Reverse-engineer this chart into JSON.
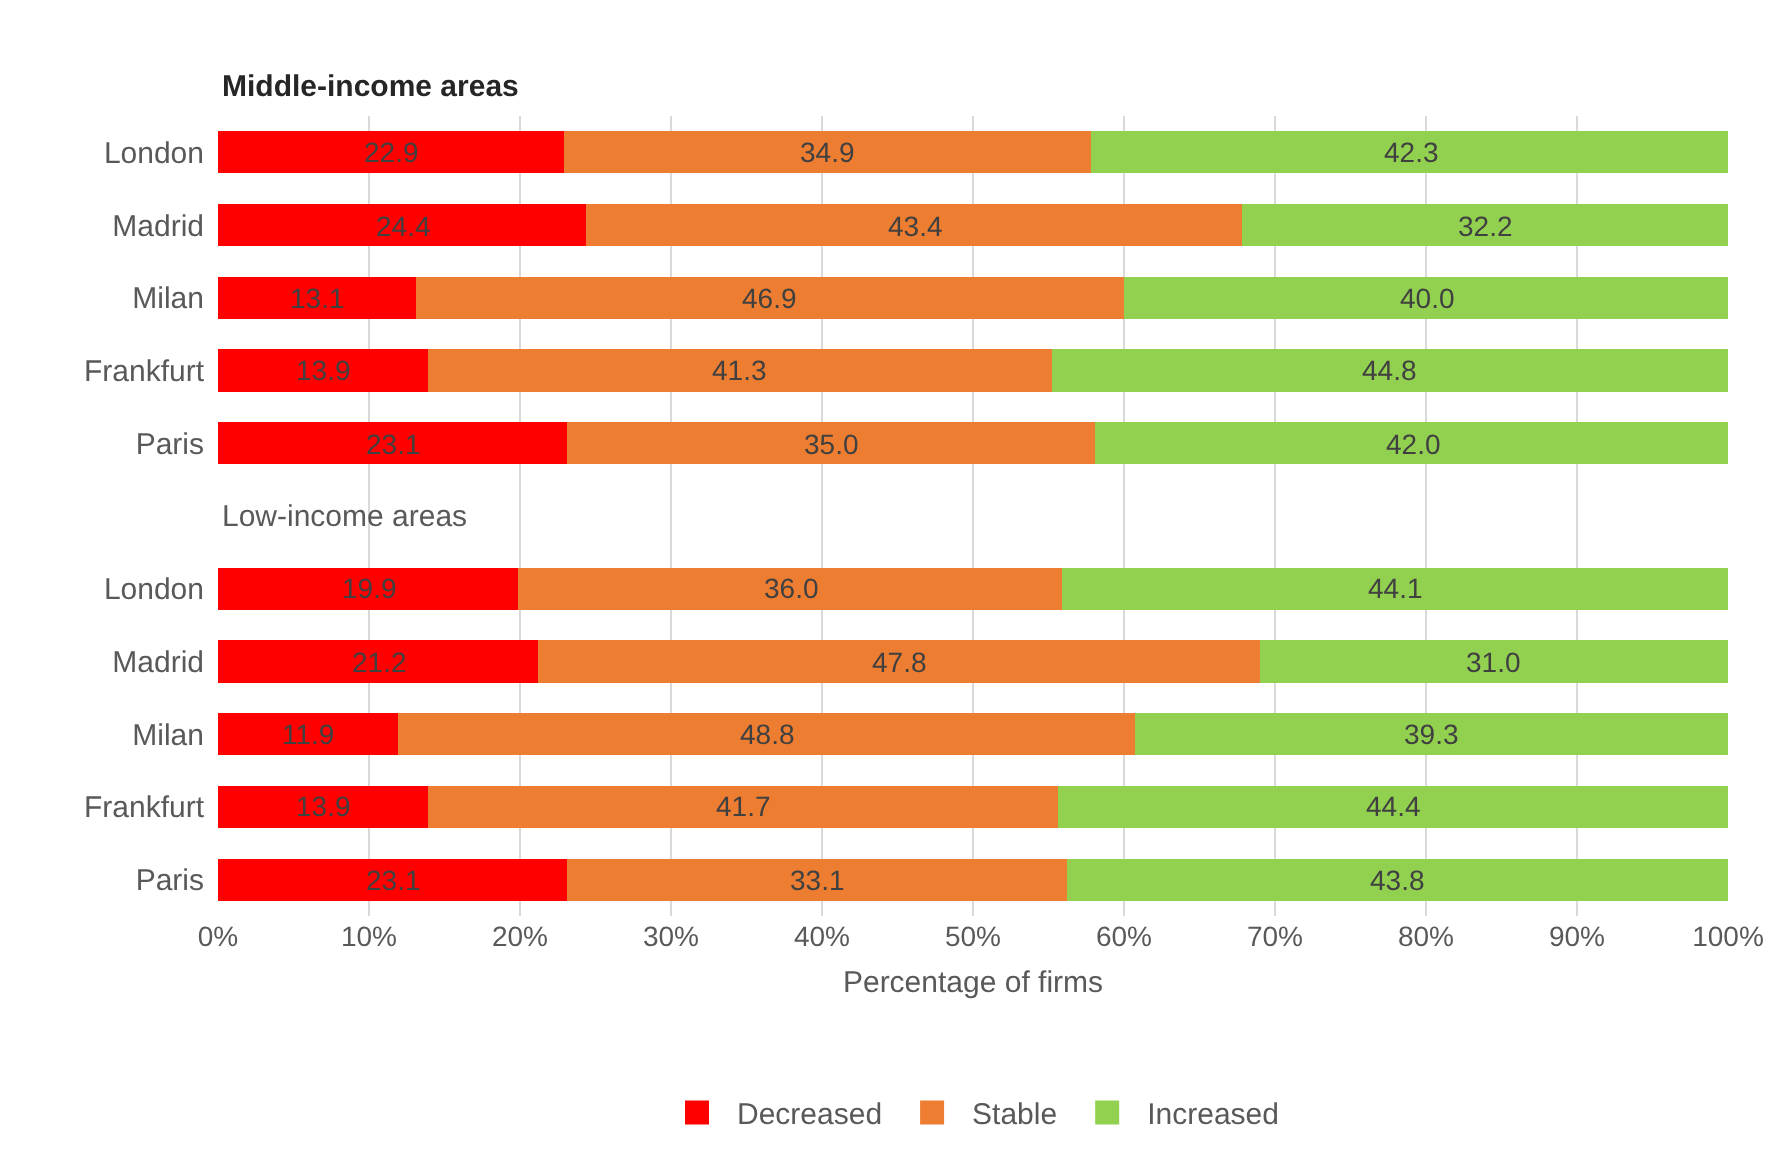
{
  "chart_data": {
    "type": "bar",
    "orientation": "horizontal",
    "stacked": true,
    "categories": [
      "London",
      "Madrid",
      "Milan",
      "Frankfurt",
      "Paris",
      null,
      "London",
      "Madrid",
      "Milan",
      "Frankfurt",
      "Paris"
    ],
    "series": [
      {
        "name": "Decreased",
        "color": "#ff0000",
        "values": [
          22.9,
          24.4,
          13.1,
          13.9,
          23.1,
          null,
          19.9,
          21.2,
          11.9,
          13.9,
          23.1
        ],
        "value_labels": [
          "22.9",
          "24.4",
          "13.1",
          "13.9",
          "23.1",
          null,
          "19.9",
          "21.2",
          "11.9",
          "13.9",
          "23.1"
        ]
      },
      {
        "name": "Stable",
        "color": "#ed7d31",
        "values": [
          34.9,
          43.4,
          46.9,
          41.3,
          35.0,
          null,
          36.0,
          47.8,
          48.8,
          41.7,
          33.1
        ],
        "value_labels": [
          "34.9",
          "43.4",
          "46.9",
          "41.3",
          "35.0",
          null,
          "36.0",
          "47.8",
          "48.8",
          "41.7",
          "33.1"
        ]
      },
      {
        "name": "Increased",
        "color": "#92d050",
        "values": [
          42.3,
          32.2,
          40.0,
          44.8,
          42.0,
          null,
          44.1,
          31.0,
          39.3,
          44.4,
          43.8
        ],
        "value_labels": [
          "42.3",
          "32.2",
          "40.0",
          "44.8",
          "42.0",
          null,
          "44.1",
          "31.0",
          "39.3",
          "44.4",
          "43.8"
        ]
      }
    ],
    "xlim": [
      0,
      100
    ],
    "xticks": [
      {
        "value": 0,
        "label": "0%"
      },
      {
        "value": 10,
        "label": "10%"
      },
      {
        "value": 20,
        "label": "20%"
      },
      {
        "value": 30,
        "label": "30%"
      },
      {
        "value": 40,
        "label": "40%"
      },
      {
        "value": 50,
        "label": "50%"
      },
      {
        "value": 60,
        "label": "60%"
      },
      {
        "value": 70,
        "label": "70%"
      },
      {
        "value": 80,
        "label": "80%"
      },
      {
        "value": 90,
        "label": "90%"
      },
      {
        "value": 100,
        "label": "100%"
      }
    ],
    "xlabel": "Percentage of firms",
    "grid": "x",
    "legend": "bottom",
    "annotations": [
      "Middle-income areas",
      "Low-income areas"
    ]
  }
}
